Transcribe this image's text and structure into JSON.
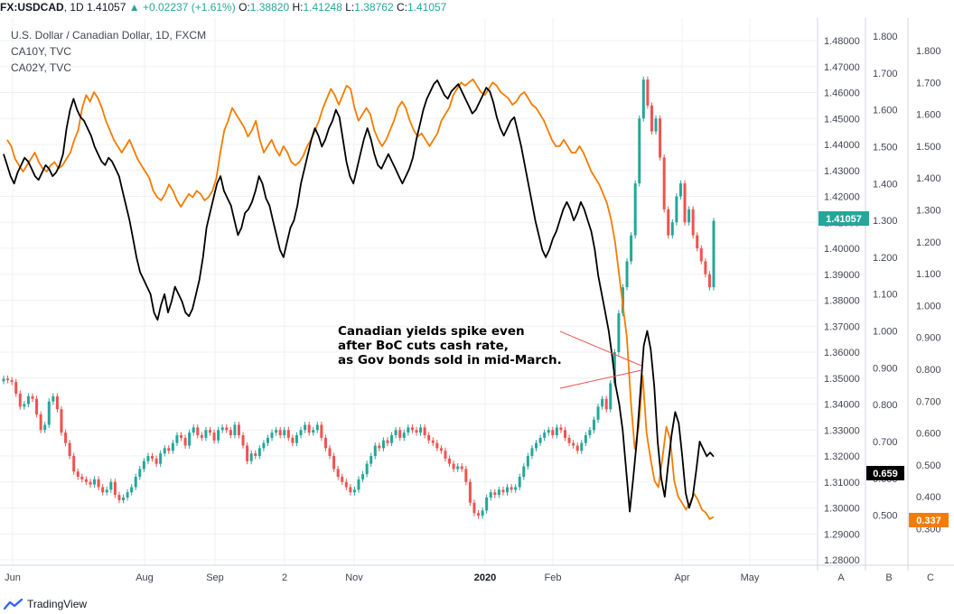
{
  "header": {
    "symbol": "FX:USDCAD",
    "interval": "1D",
    "last": "1.41057",
    "change": "▲ +0.02237 (+1.61%)",
    "o_label": "O:",
    "o": "1.38820",
    "h_label": "H:",
    "h": "1.41248",
    "l_label": "L:",
    "l": "1.38762",
    "c_label": "C:",
    "c": "1.41057"
  },
  "legend": {
    "main": "U.S. Dollar / Canadian Dollar, 1D, FXCM",
    "s1": "CA10Y, TVC",
    "s2": "CA02Y, TVC"
  },
  "annotation": {
    "line1": "Canadian yields spike even",
    "line2": "after BoC cuts cash rate,",
    "line3": "as Gov bonds sold in mid-March."
  },
  "axes": {
    "a_label": "A",
    "b_label": "B",
    "c_label": "C"
  },
  "footer": {
    "brand": "TradingView"
  },
  "colors": {
    "up": "#26a69a",
    "down": "#ef5350",
    "ca10y": "#000000",
    "ca02y": "#f57c00",
    "grid": "#eef0f3"
  },
  "chart_data": {
    "type": "line",
    "x_labels": [
      "Jun",
      "Aug",
      "Sep",
      "2",
      "Nov",
      "2020",
      "Feb",
      "Apr",
      "May"
    ],
    "last_badges": {
      "usdcad": "1.41057",
      "ca10y": "0.659",
      "ca02y": "0.337"
    },
    "axis_a": {
      "ticks": [
        "1.48000",
        "1.47000",
        "1.46000",
        "1.45000",
        "1.44000",
        "1.43000",
        "1.42000",
        "1.41000",
        "1.40000",
        "1.39000",
        "1.38000",
        "1.37000",
        "1.36000",
        "1.35000",
        "1.34000",
        "1.33000",
        "1.32000",
        "1.31000",
        "1.30000",
        "1.29000",
        "1.28000"
      ],
      "range": [
        1.28,
        1.48
      ]
    },
    "axis_b": {
      "ticks": [
        "1.800",
        "1.700",
        "1.600",
        "1.500",
        "1.400",
        "1.300",
        "1.200",
        "1.100",
        "1.000",
        "0.900",
        "0.800",
        "0.700",
        "0.600",
        "0.500"
      ],
      "range": [
        0.45,
        1.8
      ]
    },
    "axis_c": {
      "ticks": [
        "1.800",
        "1.700",
        "1.600",
        "1.500",
        "1.400",
        "1.300",
        "1.200",
        "1.100",
        "1.000",
        "0.900",
        "0.800",
        "0.700",
        "0.600",
        "0.500",
        "0.400",
        "0.300"
      ],
      "range": [
        0.29,
        1.8
      ]
    },
    "series": [
      {
        "name": "U.S. Dollar / Canadian Dollar",
        "axis": "A",
        "kind": "candles",
        "values": [
          1.3498,
          1.3492,
          1.3485,
          1.344,
          1.339,
          1.34,
          1.343,
          1.342,
          1.336,
          1.33,
          1.332,
          1.341,
          1.343,
          1.338,
          1.329,
          1.325,
          1.32,
          1.314,
          1.312,
          1.311,
          1.31,
          1.309,
          1.311,
          1.308,
          1.306,
          1.307,
          1.31,
          1.305,
          1.303,
          1.304,
          1.306,
          1.308,
          1.312,
          1.315,
          1.318,
          1.32,
          1.319,
          1.317,
          1.321,
          1.323,
          1.322,
          1.325,
          1.328,
          1.327,
          1.324,
          1.329,
          1.331,
          1.328,
          1.327,
          1.33,
          1.329,
          1.326,
          1.33,
          1.331,
          1.33,
          1.328,
          1.332,
          1.328,
          1.324,
          1.318,
          1.321,
          1.32,
          1.323,
          1.325,
          1.327,
          1.329,
          1.33,
          1.328,
          1.33,
          1.327,
          1.325,
          1.328,
          1.33,
          1.332,
          1.329,
          1.33,
          1.332,
          1.327,
          1.323,
          1.32,
          1.315,
          1.312,
          1.31,
          1.308,
          1.306,
          1.307,
          1.311,
          1.313,
          1.317,
          1.32,
          1.324,
          1.323,
          1.326,
          1.325,
          1.328,
          1.33,
          1.327,
          1.329,
          1.331,
          1.33,
          1.329,
          1.331,
          1.328,
          1.326,
          1.325,
          1.323,
          1.322,
          1.319,
          1.317,
          1.315,
          1.316,
          1.315,
          1.31,
          1.302,
          1.298,
          1.297,
          1.299,
          1.304,
          1.306,
          1.305,
          1.307,
          1.306,
          1.308,
          1.307,
          1.308,
          1.312,
          1.316,
          1.32,
          1.323,
          1.325,
          1.327,
          1.329,
          1.33,
          1.328,
          1.331,
          1.33,
          1.327,
          1.325,
          1.324,
          1.322,
          1.325,
          1.328,
          1.33,
          1.334,
          1.339,
          1.342,
          1.338,
          1.348,
          1.36,
          1.375,
          1.385,
          1.395,
          1.405,
          1.425,
          1.45,
          1.465,
          1.455,
          1.445,
          1.45,
          1.435,
          1.415,
          1.405,
          1.41,
          1.42,
          1.425,
          1.41,
          1.415,
          1.405,
          1.4,
          1.395,
          1.39,
          1.385,
          1.4106
        ]
      },
      {
        "name": "CA10Y",
        "axis": "B",
        "kind": "line",
        "values": [
          1.48,
          1.45,
          1.42,
          1.4,
          1.43,
          1.45,
          1.47,
          1.46,
          1.44,
          1.42,
          1.41,
          1.43,
          1.45,
          1.44,
          1.42,
          1.43,
          1.45,
          1.48,
          1.55,
          1.6,
          1.63,
          1.6,
          1.58,
          1.57,
          1.55,
          1.53,
          1.5,
          1.48,
          1.46,
          1.45,
          1.47,
          1.46,
          1.44,
          1.42,
          1.38,
          1.34,
          1.3,
          1.25,
          1.2,
          1.16,
          1.14,
          1.12,
          1.1,
          1.05,
          1.03,
          1.07,
          1.1,
          1.05,
          1.08,
          1.12,
          1.1,
          1.08,
          1.05,
          1.04,
          1.06,
          1.1,
          1.14,
          1.2,
          1.28,
          1.32,
          1.36,
          1.4,
          1.42,
          1.38,
          1.36,
          1.34,
          1.3,
          1.26,
          1.28,
          1.32,
          1.33,
          1.35,
          1.38,
          1.42,
          1.4,
          1.36,
          1.34,
          1.3,
          1.26,
          1.22,
          1.2,
          1.24,
          1.28,
          1.3,
          1.34,
          1.4,
          1.44,
          1.48,
          1.52,
          1.55,
          1.53,
          1.5,
          1.52,
          1.55,
          1.57,
          1.6,
          1.58,
          1.52,
          1.46,
          1.42,
          1.4,
          1.44,
          1.48,
          1.52,
          1.55,
          1.52,
          1.48,
          1.45,
          1.44,
          1.46,
          1.48,
          1.46,
          1.44,
          1.42,
          1.4,
          1.42,
          1.44,
          1.47,
          1.52,
          1.56,
          1.6,
          1.63,
          1.65,
          1.67,
          1.68,
          1.66,
          1.64,
          1.63,
          1.65,
          1.66,
          1.67,
          1.65,
          1.63,
          1.61,
          1.59,
          1.6,
          1.62,
          1.64,
          1.66,
          1.65,
          1.62,
          1.58,
          1.55,
          1.53,
          1.55,
          1.57,
          1.58,
          1.54,
          1.5,
          1.45,
          1.4,
          1.35,
          1.3,
          1.26,
          1.22,
          1.2,
          1.22,
          1.25,
          1.27,
          1.3,
          1.33,
          1.35,
          1.33,
          1.3,
          1.32,
          1.35,
          1.33,
          1.3,
          1.27,
          1.22,
          1.15,
          1.1,
          1.05,
          1.0,
          0.93,
          0.85,
          0.8,
          0.73,
          0.62,
          0.51,
          0.6,
          0.7,
          0.83,
          0.96,
          1.0,
          0.95,
          0.85,
          0.7,
          0.6,
          0.55,
          0.64,
          0.72,
          0.78,
          0.75,
          0.66,
          0.56,
          0.52,
          0.55,
          0.62,
          0.7,
          0.68,
          0.66,
          0.67,
          0.659
        ]
      },
      {
        "name": "CA02Y",
        "axis": "C",
        "kind": "line",
        "values": [
          1.52,
          1.5,
          1.46,
          1.44,
          1.42,
          1.44,
          1.46,
          1.48,
          1.45,
          1.43,
          1.42,
          1.44,
          1.45,
          1.43,
          1.44,
          1.46,
          1.48,
          1.52,
          1.55,
          1.62,
          1.66,
          1.64,
          1.67,
          1.65,
          1.62,
          1.58,
          1.55,
          1.52,
          1.5,
          1.48,
          1.5,
          1.52,
          1.49,
          1.46,
          1.44,
          1.42,
          1.4,
          1.36,
          1.34,
          1.33,
          1.35,
          1.38,
          1.36,
          1.33,
          1.31,
          1.33,
          1.35,
          1.34,
          1.36,
          1.35,
          1.33,
          1.34,
          1.36,
          1.4,
          1.48,
          1.55,
          1.58,
          1.62,
          1.6,
          1.58,
          1.56,
          1.53,
          1.55,
          1.58,
          1.52,
          1.48,
          1.5,
          1.52,
          1.49,
          1.47,
          1.5,
          1.48,
          1.45,
          1.44,
          1.45,
          1.47,
          1.5,
          1.52,
          1.55,
          1.58,
          1.62,
          1.65,
          1.68,
          1.66,
          1.63,
          1.66,
          1.69,
          1.68,
          1.62,
          1.58,
          1.6,
          1.62,
          1.6,
          1.55,
          1.52,
          1.5,
          1.52,
          1.55,
          1.58,
          1.62,
          1.64,
          1.62,
          1.58,
          1.55,
          1.53,
          1.54,
          1.52,
          1.5,
          1.52,
          1.54,
          1.58,
          1.6,
          1.62,
          1.66,
          1.68,
          1.7,
          1.69,
          1.7,
          1.71,
          1.69,
          1.67,
          1.66,
          1.68,
          1.7,
          1.69,
          1.67,
          1.66,
          1.65,
          1.63,
          1.64,
          1.66,
          1.67,
          1.65,
          1.63,
          1.62,
          1.6,
          1.58,
          1.55,
          1.52,
          1.5,
          1.5,
          1.52,
          1.5,
          1.48,
          1.48,
          1.5,
          1.48,
          1.45,
          1.42,
          1.4,
          1.38,
          1.35,
          1.32,
          1.27,
          1.2,
          1.1,
          1.0,
          0.9,
          0.7,
          0.55,
          0.62,
          0.78,
          0.6,
          0.52,
          0.45,
          0.43,
          0.52,
          0.62,
          0.58,
          0.45,
          0.4,
          0.38,
          0.36,
          0.38,
          0.41,
          0.39,
          0.36,
          0.35,
          0.33,
          0.337
        ]
      }
    ]
  }
}
